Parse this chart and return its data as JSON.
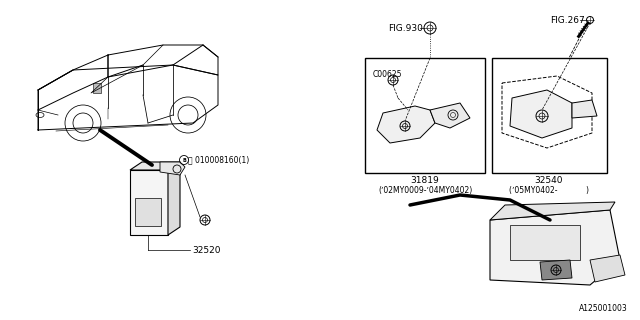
{
  "bg_color": "#ffffff",
  "lc": "#000000",
  "tc": "#000000",
  "fig_size": [
    6.4,
    3.2
  ],
  "dpi": 100,
  "labels": {
    "part_32520": "32520",
    "part_31819": "31819",
    "part_32540": "32540",
    "bolt_label": "Ⓑ 010008160(1)",
    "c00625": "C00625",
    "fig930": "FIG.930",
    "fig267": "FIG.267",
    "date1": "(ʼ02MY0009-ʼ04MY0402)",
    "date2": "(ʼ05MY0402-            )",
    "diagram_id": "A125001003"
  }
}
